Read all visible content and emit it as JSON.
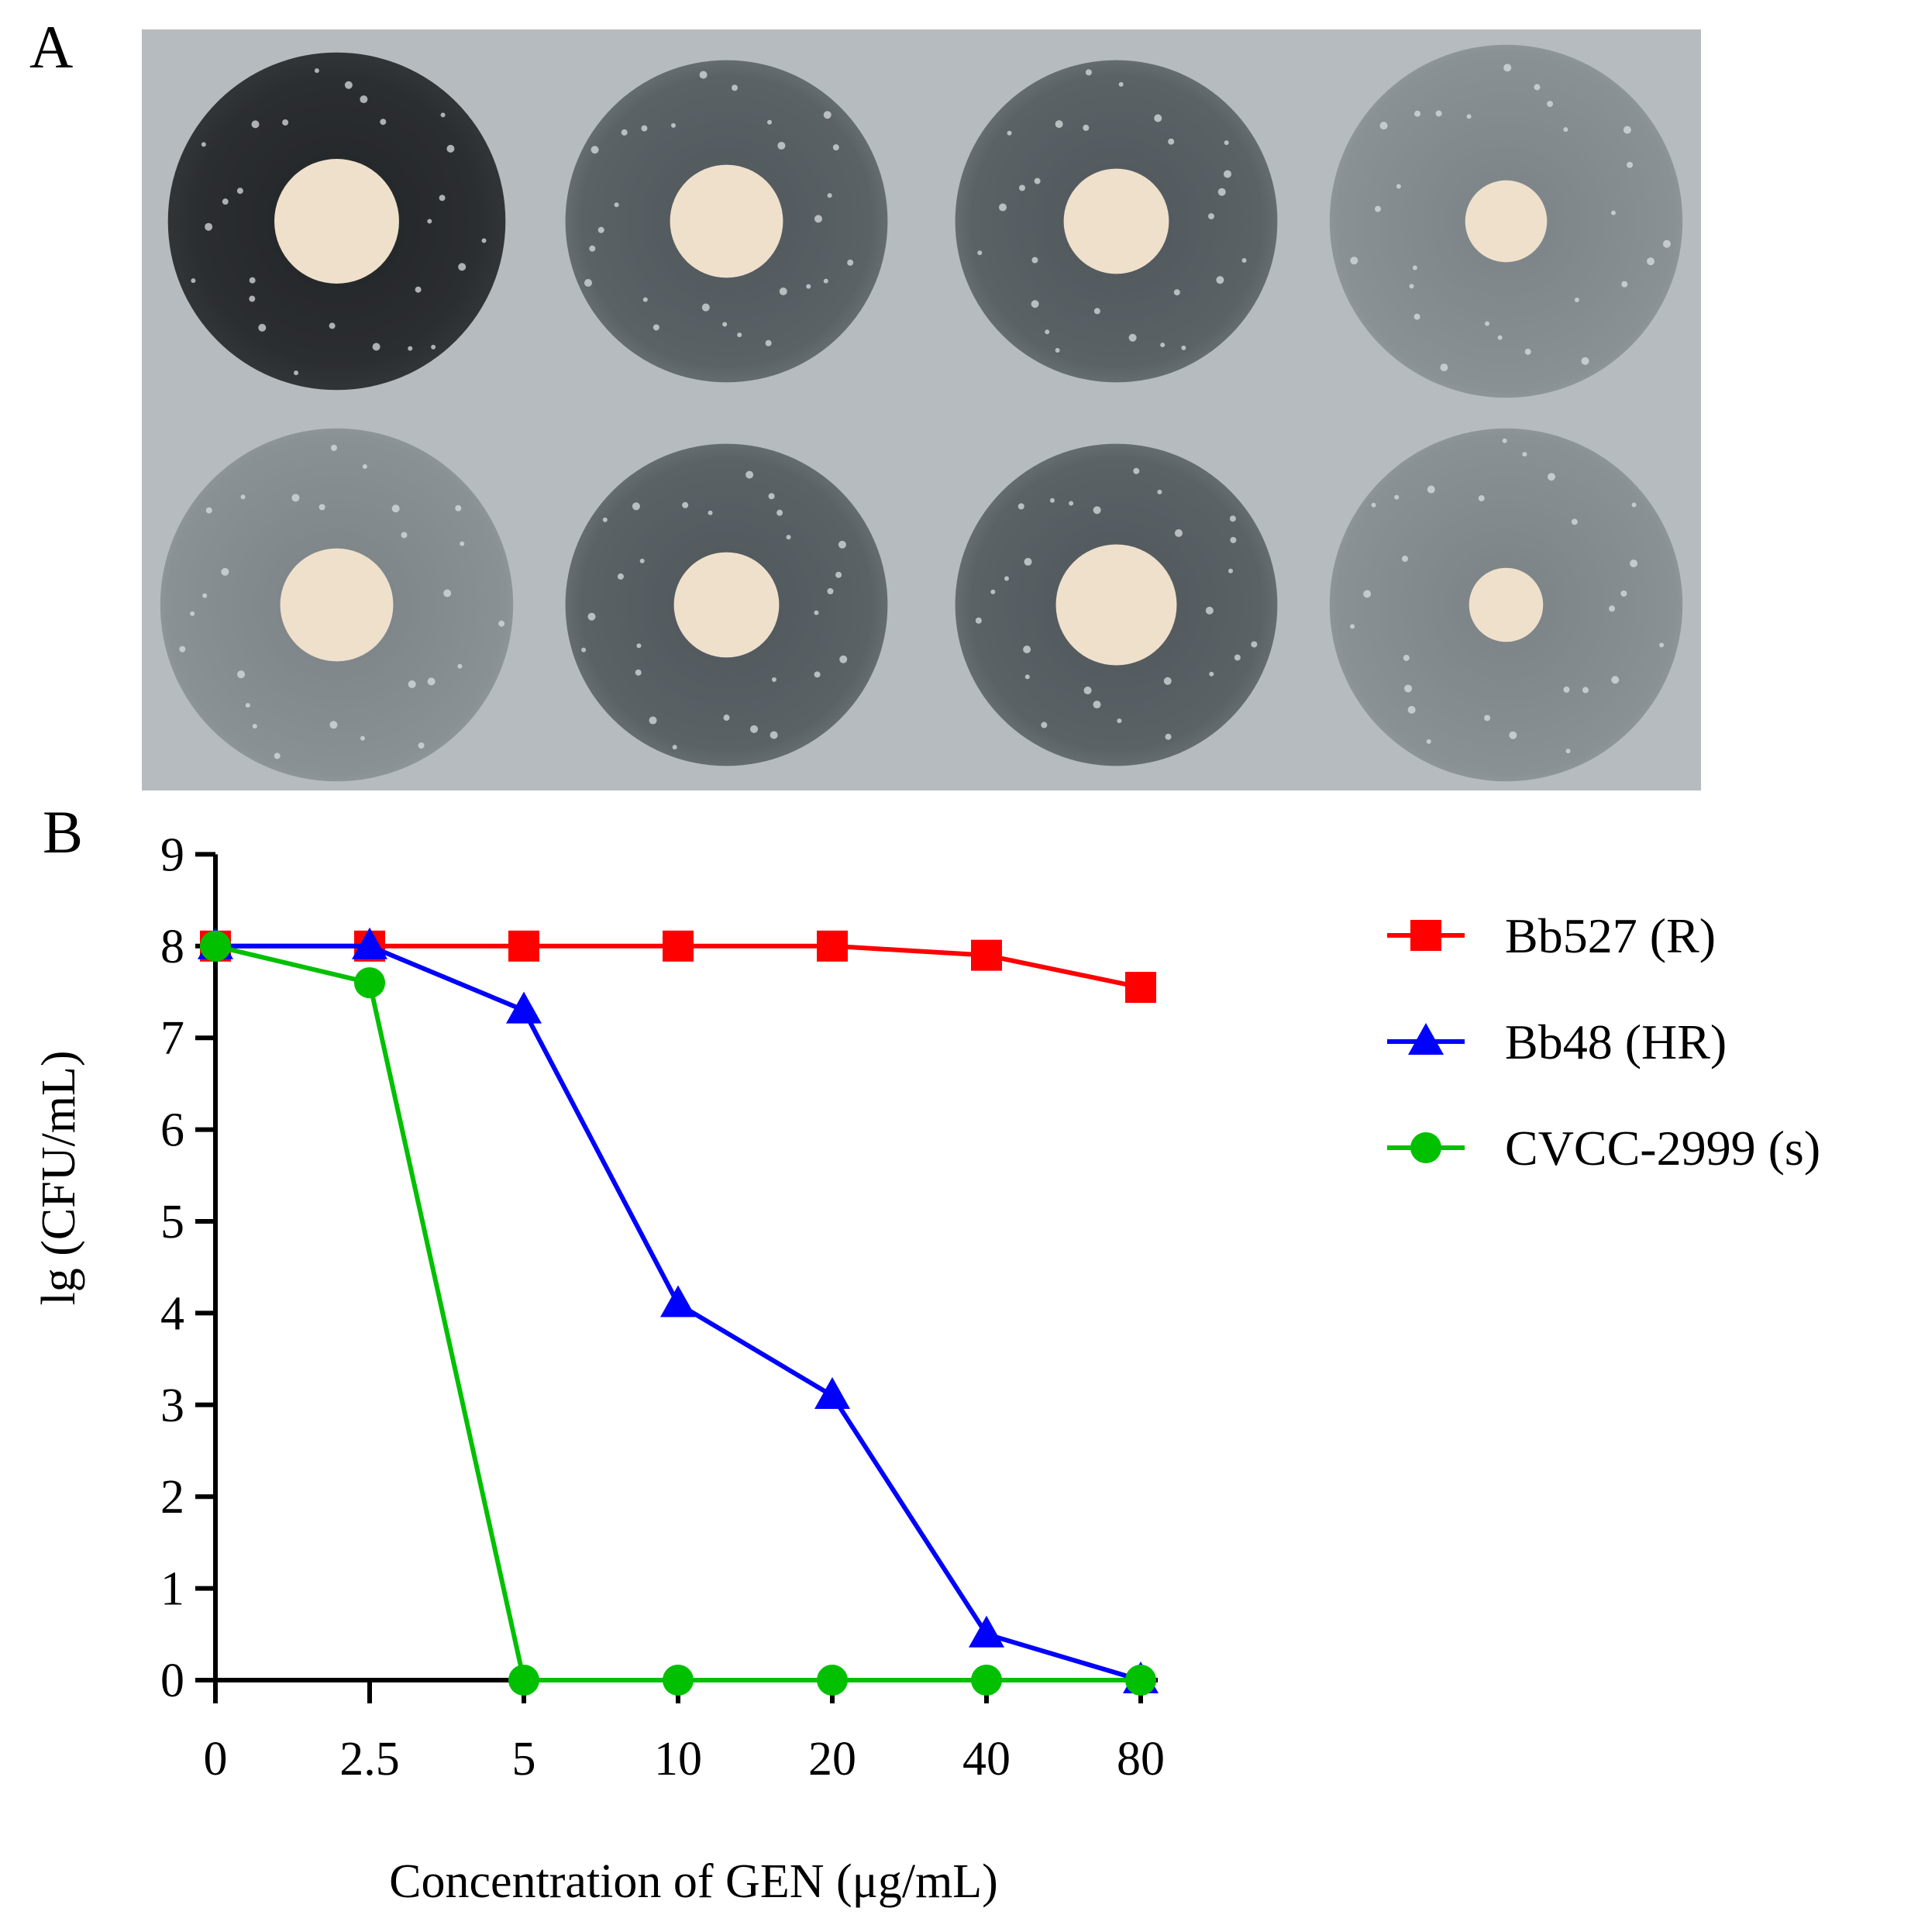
{
  "panel_a": {
    "label": "A",
    "plates": [
      {
        "row": 0,
        "col": 0,
        "zone": "dark",
        "disk": 0.32
      },
      {
        "row": 0,
        "col": 1,
        "zone": "medium",
        "disk": 0.29
      },
      {
        "row": 0,
        "col": 2,
        "zone": "medium",
        "disk": 0.27
      },
      {
        "row": 0,
        "col": 3,
        "zone": "light",
        "disk": 0.21
      },
      {
        "row": 1,
        "col": 0,
        "zone": "light",
        "disk": 0.29
      },
      {
        "row": 1,
        "col": 1,
        "zone": "medium",
        "disk": 0.27
      },
      {
        "row": 1,
        "col": 2,
        "zone": "medium",
        "disk": 0.31
      },
      {
        "row": 1,
        "col": 3,
        "zone": "light",
        "disk": 0.19
      }
    ],
    "colors": {
      "dark": "#2b2e30",
      "medium": "#5b6266",
      "light": "#8a9195",
      "disk": "#efe0cc",
      "plate": "#b5bbbe"
    }
  },
  "panel_b": {
    "label": "B"
  },
  "chart_data": {
    "type": "line",
    "categories": [
      "0",
      "2.5",
      "5",
      "10",
      "20",
      "40",
      "80"
    ],
    "xlabel": "Concentration of GEN (μg/mL)",
    "ylabel": "lg (CFU/mL)",
    "ylim": [
      0,
      9
    ],
    "yticks": [
      "0",
      "1",
      "2",
      "3",
      "4",
      "5",
      "6",
      "7",
      "8",
      "9"
    ],
    "grid": false,
    "legend_position": "right",
    "series": [
      {
        "name": "Bb527 (R)",
        "color": "#ff0000",
        "marker": "square",
        "values": [
          8.0,
          8.0,
          8.0,
          8.0,
          8.0,
          7.9,
          7.55
        ]
      },
      {
        "name": "Bb48 (HR)",
        "color": "#0000ff",
        "marker": "triangle",
        "values": [
          8.0,
          8.0,
          7.3,
          4.1,
          3.1,
          0.5,
          0.0
        ]
      },
      {
        "name": "CVCC-2999 (s)",
        "color": "#00c000",
        "marker": "circle",
        "values": [
          8.0,
          7.6,
          0.0,
          0.0,
          0.0,
          0.0,
          0.0
        ]
      }
    ]
  }
}
